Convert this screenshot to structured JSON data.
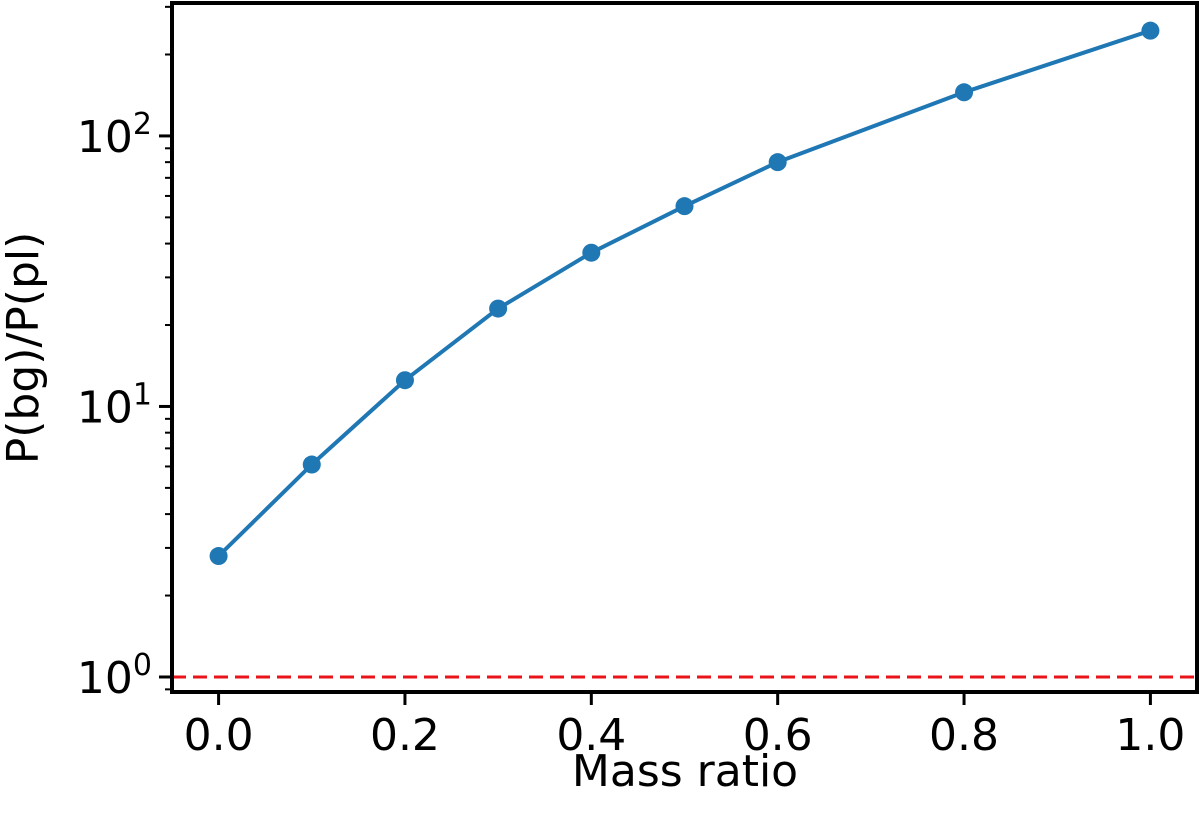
{
  "chart_data": {
    "type": "line",
    "title": "",
    "xlabel": "Mass ratio",
    "ylabel": "P(bg)/P(pl)",
    "xlim": [
      -0.05,
      1.05
    ],
    "ylim": [
      0.88,
      310
    ],
    "yscale": "log",
    "x_ticks": [
      "0.0",
      "0.2",
      "0.4",
      "0.6",
      "0.8",
      "1.0"
    ],
    "y_ticks": [
      {
        "value": 1,
        "base": "10",
        "exp": "0"
      },
      {
        "value": 10,
        "base": "10",
        "exp": "1"
      },
      {
        "value": 100,
        "base": "10",
        "exp": "2"
      }
    ],
    "series": [
      {
        "color": "#1f77b4",
        "x": [
          0.0,
          0.1,
          0.2,
          0.3,
          0.4,
          0.5,
          0.6,
          0.8,
          1.0
        ],
        "y": [
          2.8,
          6.1,
          12.5,
          23,
          37,
          55,
          80,
          145,
          245
        ]
      }
    ],
    "reference_line": {
      "y": 1,
      "color": "#e8141a",
      "style": "dashed"
    },
    "grid": false,
    "legend": "none"
  }
}
